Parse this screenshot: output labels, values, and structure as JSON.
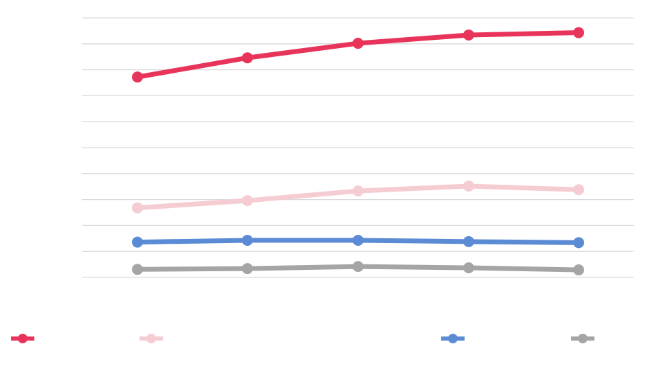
{
  "chart_data": {
    "type": "line",
    "title": "",
    "xlabel": "",
    "ylabel": "",
    "categories": [
      "",
      "",
      "",
      "",
      ""
    ],
    "ylim": [
      0,
      100
    ],
    "grid": true,
    "legend_position": "bottom",
    "series": [
      {
        "name": "",
        "color": "#E8345A",
        "values": [
          77.2,
          84.6,
          90.2,
          93.4,
          94.3
        ]
      },
      {
        "name": "",
        "color": "#F6CCD3",
        "values": [
          26.8,
          29.6,
          33.3,
          35.2,
          33.8
        ]
      },
      {
        "name": "",
        "color": "#5B8BD4",
        "values": [
          13.6,
          14.3,
          14.3,
          13.8,
          13.4
        ]
      },
      {
        "name": "",
        "color": "#A5A5A5",
        "values": [
          3.1,
          3.4,
          4.2,
          3.7,
          2.9
        ]
      }
    ]
  }
}
